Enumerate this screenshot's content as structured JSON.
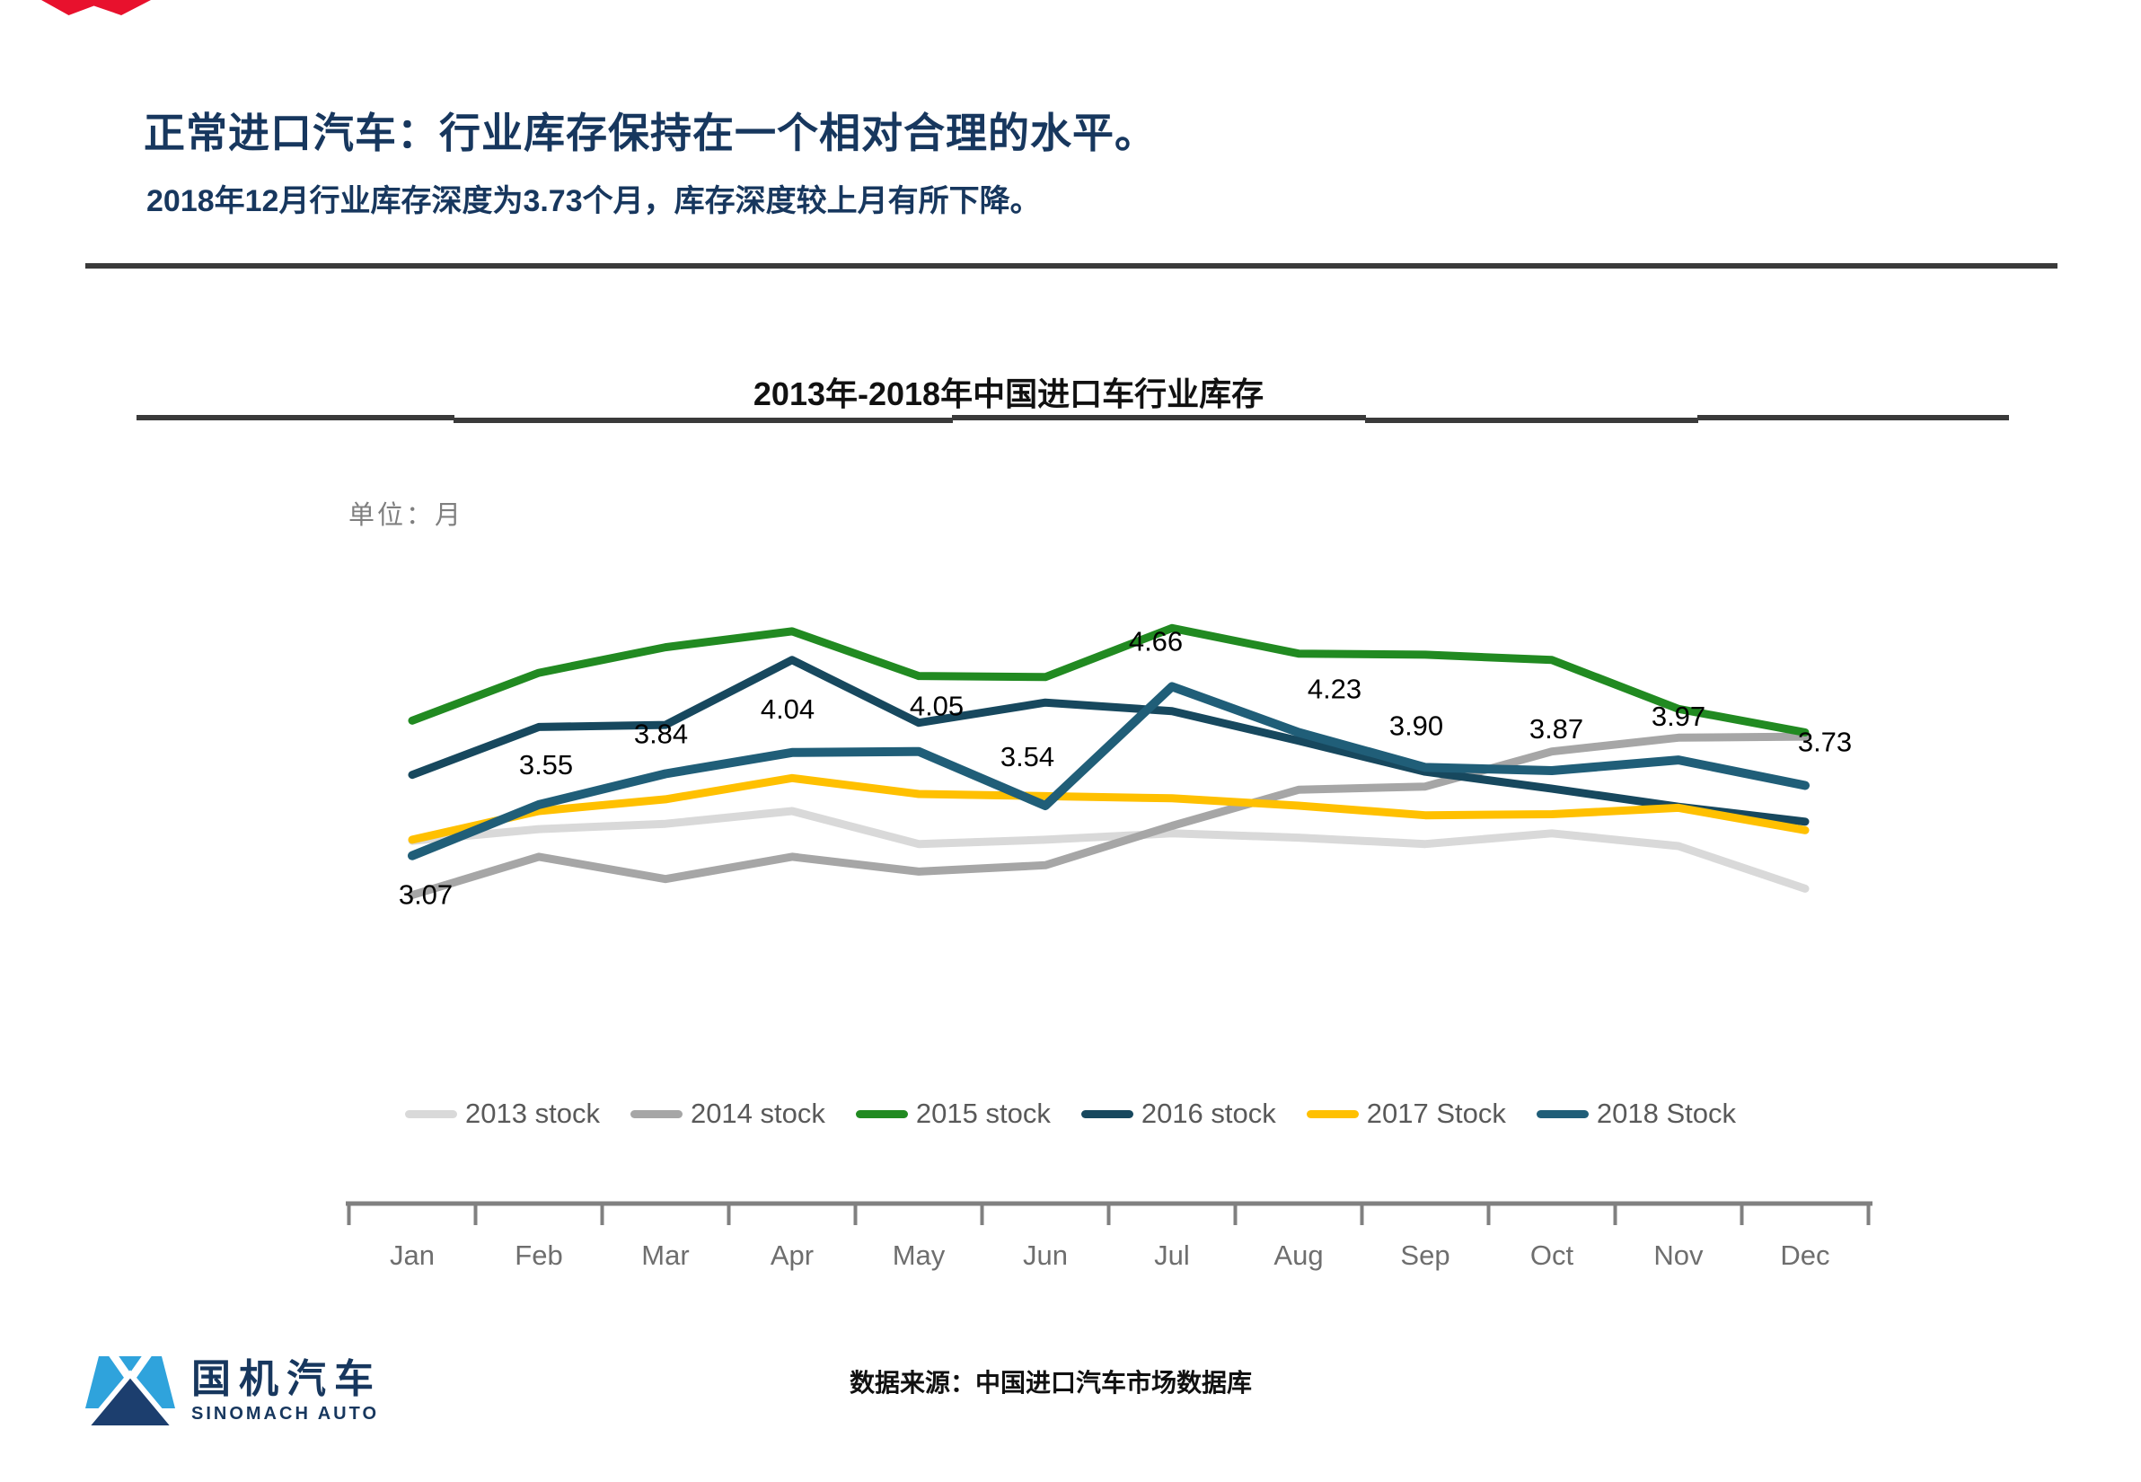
{
  "page": {
    "title": "正常进口汽车：行业库存保持在一个相对合理的水平。",
    "subtitle": "2018年12月行业库存深度为3.73个月，库存深度较上月有所下降。",
    "source": "数据来源：中国进口汽车市场数据库",
    "logo": {
      "cn": "国机汽车",
      "en": "SINOMACH AUTO"
    }
  },
  "colors": {
    "title_blue": "#17375e",
    "rule_dark": "#3a3a3a",
    "axis_gray": "#808080",
    "tick_label_gray": "#6e6e6e",
    "legend_text_gray": "#595959",
    "red_accent": "#e8112d",
    "logo_light_blue": "#2fa3dc",
    "logo_navy": "#1c3e6e"
  },
  "chart_data": {
    "type": "line",
    "title": "2013年-2018年中国进口车行业库存",
    "unit_label": "单位：月",
    "xlabel": "",
    "ylabel": "月",
    "grid": false,
    "legend_position": "bottom",
    "ylim": [
      2.4,
      5.5
    ],
    "categories": [
      "Jan",
      "Feb",
      "Mar",
      "Apr",
      "May",
      "Jun",
      "Jul",
      "Aug",
      "Sep",
      "Oct",
      "Nov",
      "Dec"
    ],
    "series": [
      {
        "name": "2013 stock",
        "color": "#d9d9d9",
        "values": [
          3.21,
          3.32,
          3.37,
          3.49,
          3.18,
          3.22,
          3.28,
          3.24,
          3.18,
          3.28,
          3.16,
          2.76
        ]
      },
      {
        "name": "2014 stock",
        "color": "#a6a6a6",
        "values": [
          2.7,
          3.06,
          2.85,
          3.06,
          2.92,
          2.98,
          3.35,
          3.69,
          3.72,
          4.05,
          4.18,
          4.19
        ]
      },
      {
        "name": "2015 stock",
        "color": "#218a21",
        "values": [
          4.34,
          4.79,
          5.03,
          5.18,
          4.76,
          4.75,
          5.21,
          4.97,
          4.96,
          4.91,
          4.45,
          4.23
        ]
      },
      {
        "name": "2016 stock",
        "color": "#17485e",
        "values": [
          3.83,
          4.28,
          4.3,
          4.91,
          4.32,
          4.51,
          4.43,
          4.15,
          3.86,
          3.7,
          3.53,
          3.39
        ]
      },
      {
        "name": "2017 Stock",
        "color": "#ffc000",
        "values": [
          3.22,
          3.49,
          3.6,
          3.8,
          3.65,
          3.63,
          3.61,
          3.54,
          3.45,
          3.46,
          3.52,
          3.31
        ]
      },
      {
        "name": "2018 Stock",
        "color": "#205e78",
        "labeled": true,
        "values": [
          3.07,
          3.55,
          3.84,
          4.04,
          4.05,
          3.54,
          4.66,
          4.23,
          3.9,
          3.87,
          3.97,
          3.73
        ]
      }
    ]
  }
}
